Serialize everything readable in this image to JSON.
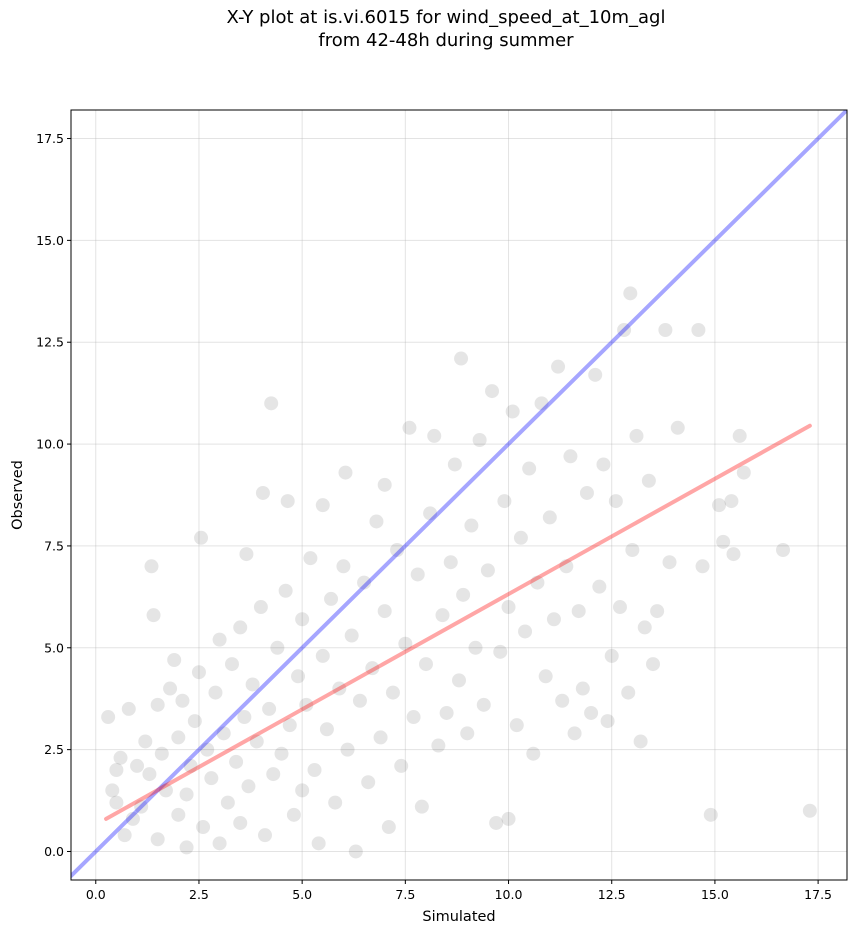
{
  "chart_data": {
    "type": "scatter",
    "title_line1": "X-Y plot at is.vi.6015 for wind_speed_at_10m_agl",
    "title_line2": "from 42-48h during summer",
    "xlabel": "Simulated",
    "ylabel": "Observed",
    "xlim": [
      -0.6,
      18.2
    ],
    "ylim": [
      -0.7,
      18.2
    ],
    "xticks": [
      0.0,
      2.5,
      5.0,
      7.5,
      10.0,
      12.5,
      15.0,
      17.5
    ],
    "yticks": [
      0.0,
      2.5,
      5.0,
      7.5,
      10.0,
      12.5,
      15.0,
      17.5
    ],
    "xtick_labels": [
      "0.0",
      "2.5",
      "5.0",
      "7.5",
      "10.0",
      "12.5",
      "15.0",
      "17.5"
    ],
    "ytick_labels": [
      "0.0",
      "2.5",
      "5.0",
      "7.5",
      "10.0",
      "12.5",
      "15.0",
      "17.5"
    ],
    "grid": true,
    "point_color": "#000000",
    "one_to_one_line": {
      "color": "#0000ff",
      "x": [
        -0.6,
        18.2
      ],
      "y": [
        -0.6,
        18.2
      ]
    },
    "regression_line": {
      "color": "#ff0000",
      "x": [
        0.25,
        17.3
      ],
      "y": [
        0.8,
        10.45
      ]
    },
    "points": [
      [
        0.3,
        3.3
      ],
      [
        0.4,
        1.5
      ],
      [
        0.5,
        2.0
      ],
      [
        0.6,
        2.3
      ],
      [
        0.5,
        1.2
      ],
      [
        0.7,
        0.4
      ],
      [
        0.8,
        3.5
      ],
      [
        0.9,
        0.8
      ],
      [
        1.0,
        2.1
      ],
      [
        1.1,
        1.1
      ],
      [
        1.2,
        2.7
      ],
      [
        1.3,
        1.9
      ],
      [
        1.35,
        7.0
      ],
      [
        1.4,
        5.8
      ],
      [
        1.5,
        0.3
      ],
      [
        1.5,
        3.6
      ],
      [
        1.6,
        2.4
      ],
      [
        1.7,
        1.5
      ],
      [
        1.8,
        4.0
      ],
      [
        1.9,
        4.7
      ],
      [
        2.0,
        0.9
      ],
      [
        2.0,
        2.8
      ],
      [
        2.1,
        3.7
      ],
      [
        2.2,
        1.4
      ],
      [
        2.2,
        0.1
      ],
      [
        2.3,
        2.1
      ],
      [
        2.4,
        3.2
      ],
      [
        2.5,
        4.4
      ],
      [
        2.55,
        7.7
      ],
      [
        2.6,
        0.6
      ],
      [
        2.7,
        2.5
      ],
      [
        2.8,
        1.8
      ],
      [
        2.9,
        3.9
      ],
      [
        3.0,
        5.2
      ],
      [
        3.0,
        0.2
      ],
      [
        3.1,
        2.9
      ],
      [
        3.2,
        1.2
      ],
      [
        3.3,
        4.6
      ],
      [
        3.4,
        2.2
      ],
      [
        3.5,
        5.5
      ],
      [
        3.5,
        0.7
      ],
      [
        3.6,
        3.3
      ],
      [
        3.65,
        7.3
      ],
      [
        3.7,
        1.6
      ],
      [
        3.8,
        4.1
      ],
      [
        3.9,
        2.7
      ],
      [
        4.0,
        6.0
      ],
      [
        4.05,
        8.8
      ],
      [
        4.1,
        0.4
      ],
      [
        4.2,
        3.5
      ],
      [
        4.25,
        11.0
      ],
      [
        4.3,
        1.9
      ],
      [
        4.4,
        5.0
      ],
      [
        4.5,
        2.4
      ],
      [
        4.6,
        6.4
      ],
      [
        4.65,
        8.6
      ],
      [
        4.7,
        3.1
      ],
      [
        4.8,
        0.9
      ],
      [
        4.9,
        4.3
      ],
      [
        5.0,
        1.5
      ],
      [
        5.0,
        5.7
      ],
      [
        5.1,
        3.6
      ],
      [
        5.2,
        7.2
      ],
      [
        5.3,
        2.0
      ],
      [
        5.4,
        0.2
      ],
      [
        5.5,
        4.8
      ],
      [
        5.5,
        8.5
      ],
      [
        5.6,
        3.0
      ],
      [
        5.7,
        6.2
      ],
      [
        5.8,
        1.2
      ],
      [
        5.9,
        4.0
      ],
      [
        6.0,
        7.0
      ],
      [
        6.05,
        9.3
      ],
      [
        6.1,
        2.5
      ],
      [
        6.2,
        5.3
      ],
      [
        6.3,
        0.0
      ],
      [
        6.4,
        3.7
      ],
      [
        6.5,
        6.6
      ],
      [
        6.6,
        1.7
      ],
      [
        6.7,
        4.5
      ],
      [
        6.8,
        8.1
      ],
      [
        6.9,
        2.8
      ],
      [
        7.0,
        5.9
      ],
      [
        7.0,
        9.0
      ],
      [
        7.1,
        0.6
      ],
      [
        7.2,
        3.9
      ],
      [
        7.3,
        7.4
      ],
      [
        7.4,
        2.1
      ],
      [
        7.5,
        5.1
      ],
      [
        7.6,
        10.4
      ],
      [
        7.7,
        3.3
      ],
      [
        7.8,
        6.8
      ],
      [
        7.9,
        1.1
      ],
      [
        8.0,
        4.6
      ],
      [
        8.1,
        8.3
      ],
      [
        8.2,
        10.2
      ],
      [
        8.3,
        2.6
      ],
      [
        8.4,
        5.8
      ],
      [
        8.5,
        3.4
      ],
      [
        8.6,
        7.1
      ],
      [
        8.7,
        9.5
      ],
      [
        8.8,
        4.2
      ],
      [
        8.85,
        12.1
      ],
      [
        8.9,
        6.3
      ],
      [
        9.0,
        2.9
      ],
      [
        9.1,
        8.0
      ],
      [
        9.2,
        5.0
      ],
      [
        9.3,
        10.1
      ],
      [
        9.4,
        3.6
      ],
      [
        9.5,
        6.9
      ],
      [
        9.6,
        11.3
      ],
      [
        9.7,
        0.7
      ],
      [
        9.8,
        4.9
      ],
      [
        9.9,
        8.6
      ],
      [
        10.0,
        0.8
      ],
      [
        10.0,
        6.0
      ],
      [
        10.1,
        10.8
      ],
      [
        10.2,
        3.1
      ],
      [
        10.3,
        7.7
      ],
      [
        10.4,
        5.4
      ],
      [
        10.5,
        9.4
      ],
      [
        10.6,
        2.4
      ],
      [
        10.7,
        6.6
      ],
      [
        10.8,
        11.0
      ],
      [
        10.9,
        4.3
      ],
      [
        11.0,
        8.2
      ],
      [
        11.1,
        5.7
      ],
      [
        11.2,
        11.9
      ],
      [
        11.3,
        3.7
      ],
      [
        11.4,
        7.0
      ],
      [
        11.5,
        9.7
      ],
      [
        11.6,
        2.9
      ],
      [
        11.7,
        5.9
      ],
      [
        11.8,
        4.0
      ],
      [
        11.9,
        8.8
      ],
      [
        12.0,
        3.4
      ],
      [
        12.1,
        11.7
      ],
      [
        12.2,
        6.5
      ],
      [
        12.3,
        9.5
      ],
      [
        12.4,
        3.2
      ],
      [
        12.5,
        4.8
      ],
      [
        12.6,
        8.6
      ],
      [
        12.7,
        6.0
      ],
      [
        12.8,
        12.8
      ],
      [
        12.9,
        3.9
      ],
      [
        12.95,
        13.7
      ],
      [
        13.0,
        7.4
      ],
      [
        13.1,
        10.2
      ],
      [
        13.2,
        2.7
      ],
      [
        13.3,
        5.5
      ],
      [
        13.4,
        9.1
      ],
      [
        13.5,
        4.6
      ],
      [
        13.6,
        5.9
      ],
      [
        13.8,
        12.8
      ],
      [
        13.9,
        7.1
      ],
      [
        14.1,
        10.4
      ],
      [
        14.6,
        12.8
      ],
      [
        14.7,
        7.0
      ],
      [
        14.9,
        0.9
      ],
      [
        15.1,
        8.5
      ],
      [
        15.2,
        7.6
      ],
      [
        15.4,
        8.6
      ],
      [
        15.45,
        7.3
      ],
      [
        15.6,
        10.2
      ],
      [
        15.7,
        9.3
      ],
      [
        16.65,
        7.4
      ],
      [
        17.3,
        1.0
      ]
    ]
  }
}
